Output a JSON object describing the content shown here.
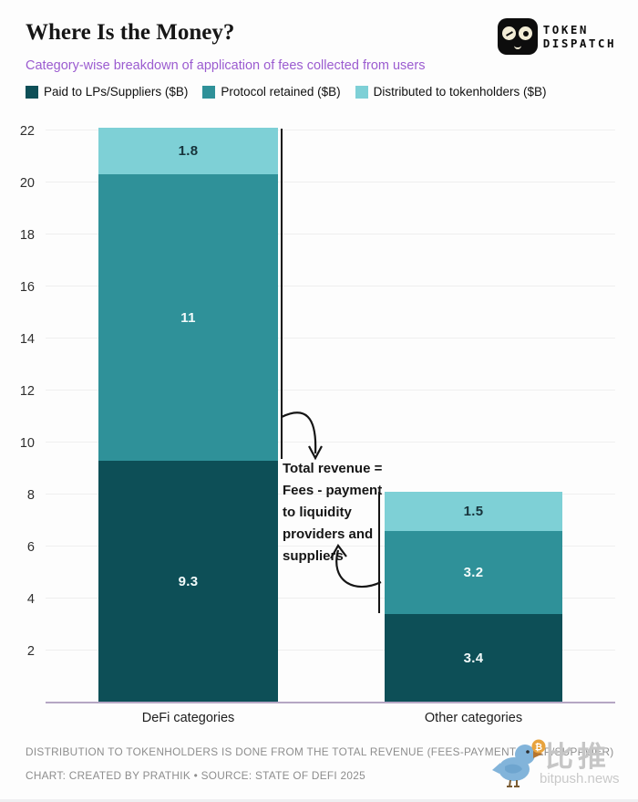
{
  "header": {
    "title": "Where Is the Money?",
    "subtitle": "Category-wise breakdown of application of fees collected from users",
    "logo": {
      "line1": "TOKEN",
      "line2": "DISPATCH"
    }
  },
  "chart_data": {
    "type": "bar",
    "stacked": true,
    "title": "Where Is the Money?",
    "subtitle": "Category-wise breakdown of application of fees collected from users",
    "categories": [
      "DeFi categories",
      "Other categories"
    ],
    "series": [
      {
        "name": "Paid to LPs/Suppliers ($B)",
        "values": [
          9.3,
          3.4
        ],
        "color": "#0d4f57",
        "label_color": "#f2fafa"
      },
      {
        "name": "Protocol retained ($B)",
        "values": [
          11,
          3.2
        ],
        "color": "#2f9199",
        "label_color": "#f2fafa"
      },
      {
        "name": "Distributed to tokenholders ($B)",
        "values": [
          1.8,
          1.5
        ],
        "color": "#7ed0d6",
        "label_color": "#17333b"
      }
    ],
    "totals": [
      22.1,
      8.1
    ],
    "ylim": [
      0,
      22
    ],
    "yticks": [
      2,
      4,
      6,
      8,
      10,
      12,
      14,
      16,
      18,
      20,
      22
    ],
    "grid": true,
    "legend_position": "top",
    "annotation": "Total revenue = Fees - payment to liquidity providers and suppliers"
  },
  "annotation": {
    "lines": [
      "Total revenue =",
      "Fees - payment",
      "to liquidity",
      "providers and",
      "suppliers"
    ]
  },
  "footer": {
    "line1": "DISTRIBUTION TO TOKENHOLDERS IS DONE FROM THE TOTAL REVENUE (FEES-PAYMENT TO LP/SUPPLIER)",
    "line2": "CHART: CREATED BY PRATHIK • SOURCE: STATE OF DEFI 2025"
  },
  "watermark": {
    "cjk": "比推",
    "domain": "bitpush.news"
  },
  "colors": {
    "accent_purple": "#9b5cd0",
    "axis_line": "#b5a6c4",
    "dark_teal": "#0d4f57",
    "mid_teal": "#2f9199",
    "light_teal": "#7ed0d6",
    "footer_gray": "#8d8d8d"
  }
}
